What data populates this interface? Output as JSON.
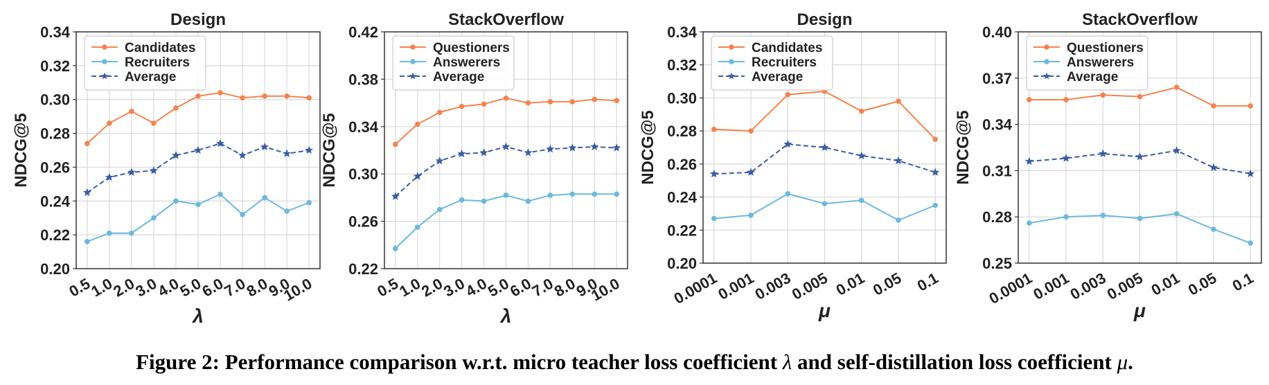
{
  "caption": {
    "prefix": "Figure 2: Performance comparison w.r.t. micro teacher loss coefficient ",
    "sym1": "λ",
    "middle": " and self-distillation loss coefficient ",
    "sym2": "μ",
    "suffix": "."
  },
  "colors": {
    "orange": "#f4834f",
    "blue": "#6cb9dd",
    "dashed": "#3c5da1"
  },
  "chart_data": [
    {
      "type": "line",
      "title": "Design",
      "xlabel": "λ",
      "ylabel": "NDCG@5",
      "categories": [
        "0.5",
        "1.0",
        "2.0",
        "3.0",
        "4.0",
        "5.0",
        "6.0",
        "7.0",
        "8.0",
        "9.0",
        "10.0"
      ],
      "ylim": [
        0.2,
        0.34
      ],
      "yticks": [
        "0.20",
        "0.22",
        "0.24",
        "0.26",
        "0.28",
        "0.30",
        "0.32",
        "0.34"
      ],
      "grid": true,
      "legend": "top-left",
      "series": [
        {
          "name": "Candidates",
          "values": [
            0.274,
            0.286,
            0.293,
            0.286,
            0.295,
            0.302,
            0.304,
            0.301,
            0.302,
            0.302,
            0.301
          ],
          "color": "#f4834f",
          "style": "solid",
          "marker": "circle"
        },
        {
          "name": "Recruiters",
          "values": [
            0.216,
            0.221,
            0.221,
            0.23,
            0.24,
            0.238,
            0.244,
            0.232,
            0.242,
            0.234,
            0.239
          ],
          "color": "#6cb9dd",
          "style": "solid",
          "marker": "circle"
        },
        {
          "name": "Average",
          "values": [
            0.245,
            0.254,
            0.257,
            0.258,
            0.267,
            0.27,
            0.274,
            0.267,
            0.272,
            0.268,
            0.27
          ],
          "color": "#3c5da1",
          "style": "dashed",
          "marker": "star"
        }
      ]
    },
    {
      "type": "line",
      "title": "StackOverflow",
      "xlabel": "λ",
      "ylabel": "NDCG@5",
      "categories": [
        "0.5",
        "1.0",
        "2.0",
        "3.0",
        "4.0",
        "5.0",
        "6.0",
        "7.0",
        "8.0",
        "9.0",
        "10.0"
      ],
      "ylim": [
        0.22,
        0.42
      ],
      "yticks": [
        "0.22",
        "0.26",
        "0.30",
        "0.34",
        "0.38",
        "0.42"
      ],
      "grid": true,
      "legend": "top-left",
      "series": [
        {
          "name": "Questioners",
          "values": [
            0.325,
            0.342,
            0.352,
            0.357,
            0.359,
            0.364,
            0.36,
            0.361,
            0.361,
            0.363,
            0.362
          ],
          "color": "#f4834f",
          "style": "solid",
          "marker": "circle"
        },
        {
          "name": "Answerers",
          "values": [
            0.237,
            0.255,
            0.27,
            0.278,
            0.277,
            0.282,
            0.277,
            0.282,
            0.283,
            0.283,
            0.283
          ],
          "color": "#6cb9dd",
          "style": "solid",
          "marker": "circle"
        },
        {
          "name": "Average",
          "values": [
            0.281,
            0.298,
            0.311,
            0.317,
            0.318,
            0.323,
            0.318,
            0.321,
            0.322,
            0.323,
            0.322
          ],
          "color": "#3c5da1",
          "style": "dashed",
          "marker": "star"
        }
      ]
    },
    {
      "type": "line",
      "title": "Design",
      "xlabel": "μ",
      "ylabel": "NDCG@5",
      "categories": [
        "0.0001",
        "0.001",
        "0.003",
        "0.005",
        "0.01",
        "0.05",
        "0.1"
      ],
      "ylim": [
        0.2,
        0.34
      ],
      "yticks": [
        "0.20",
        "0.22",
        "0.24",
        "0.26",
        "0.28",
        "0.30",
        "0.32",
        "0.34"
      ],
      "grid": true,
      "legend": "top-left",
      "series": [
        {
          "name": "Candidates",
          "values": [
            0.281,
            0.28,
            0.302,
            0.304,
            0.292,
            0.298,
            0.275
          ],
          "color": "#f4834f",
          "style": "solid",
          "marker": "circle"
        },
        {
          "name": "Recruiters",
          "values": [
            0.227,
            0.229,
            0.242,
            0.236,
            0.238,
            0.226,
            0.235
          ],
          "color": "#6cb9dd",
          "style": "solid",
          "marker": "circle"
        },
        {
          "name": "Average",
          "values": [
            0.254,
            0.255,
            0.272,
            0.27,
            0.265,
            0.262,
            0.255
          ],
          "color": "#3c5da1",
          "style": "dashed",
          "marker": "star"
        }
      ]
    },
    {
      "type": "line",
      "title": "StackOverflow",
      "xlabel": "μ",
      "ylabel": "NDCG@5",
      "categories": [
        "0.0001",
        "0.001",
        "0.003",
        "0.005",
        "0.01",
        "0.05",
        "0.1"
      ],
      "ylim": [
        0.25,
        0.4
      ],
      "yticks": [
        "0.25",
        "0.28",
        "0.31",
        "0.34",
        "0.37",
        "0.40"
      ],
      "grid": true,
      "legend": "top-left",
      "series": [
        {
          "name": "Questioners",
          "values": [
            0.356,
            0.356,
            0.359,
            0.358,
            0.364,
            0.352,
            0.352
          ],
          "color": "#f4834f",
          "style": "solid",
          "marker": "circle"
        },
        {
          "name": "Answerers",
          "values": [
            0.276,
            0.28,
            0.281,
            0.279,
            0.282,
            0.272,
            0.263
          ],
          "color": "#6cb9dd",
          "style": "solid",
          "marker": "circle"
        },
        {
          "name": "Average",
          "values": [
            0.316,
            0.318,
            0.321,
            0.319,
            0.323,
            0.312,
            0.308
          ],
          "color": "#3c5da1",
          "style": "dashed",
          "marker": "star"
        }
      ]
    }
  ]
}
